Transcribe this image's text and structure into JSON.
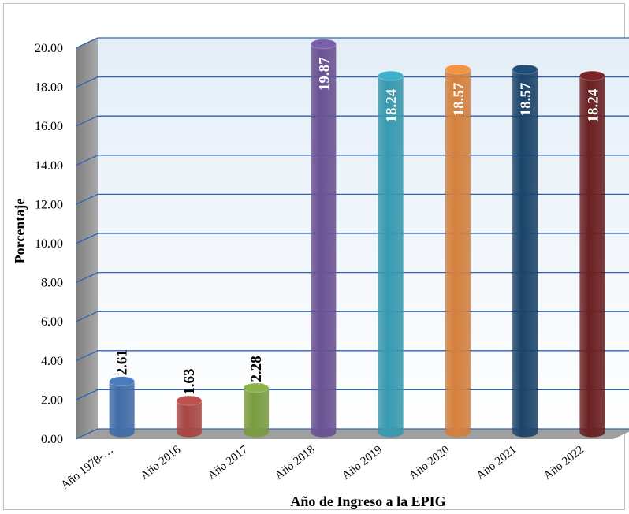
{
  "chart_data": {
    "type": "bar",
    "categories": [
      "Año 1978-…",
      "Año 2016",
      "Año 2017",
      "Año 2018",
      "Año 2019",
      "Año 2020",
      "Año 2021",
      "Año 2022"
    ],
    "values": [
      2.61,
      1.63,
      2.28,
      19.87,
      18.24,
      18.57,
      18.57,
      18.24
    ],
    "value_labels": [
      "2.61",
      "1.63",
      "2.28",
      "19.87",
      "18.24",
      "18.57",
      "18.57",
      "18.24"
    ],
    "colors": [
      "#4a7cc0",
      "#c0504d",
      "#8cb34a",
      "#7a5ea8",
      "#3fb0c9",
      "#f39346",
      "#1f4e79",
      "#7b2426"
    ],
    "label_colors": [
      "#000000",
      "#000000",
      "#000000",
      "#ffffff",
      "#ffffff",
      "#ffffff",
      "#ffffff",
      "#ffffff"
    ],
    "xlabel": "Año de Ingreso a la EPIG",
    "ylabel": "Porcentaje",
    "ylim": [
      0,
      20
    ],
    "yticks": [
      "0.00",
      "2.00",
      "4.00",
      "6.00",
      "8.00",
      "10.00",
      "12.00",
      "14.00",
      "16.00",
      "18.00",
      "20.00"
    ],
    "grid": true,
    "legend": "none"
  }
}
